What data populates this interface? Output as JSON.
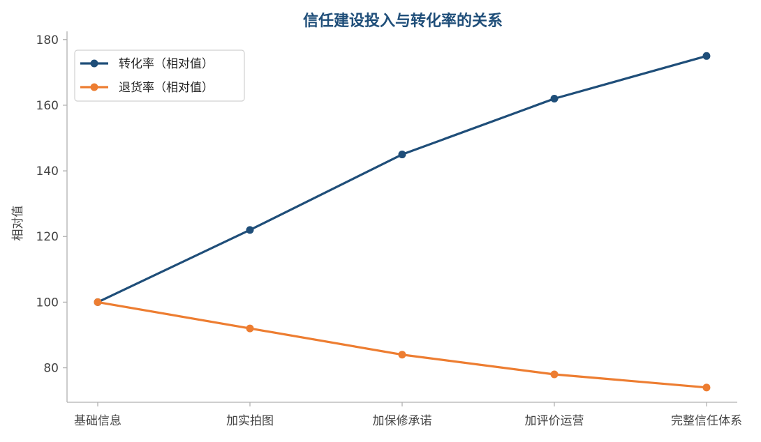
{
  "chart_data": {
    "type": "line",
    "title": "信任建设投入与转化率的关系",
    "xlabel": "",
    "ylabel": "相对值",
    "categories": [
      "基础信息",
      "加实拍图",
      "加保修承诺",
      "加评价运营",
      "完整信任体系"
    ],
    "series": [
      {
        "name": "转化率（相对值）",
        "values": [
          100,
          122,
          145,
          162,
          175
        ],
        "color": "#1f4e79"
      },
      {
        "name": "退货率（相对值）",
        "values": [
          100,
          92,
          84,
          78,
          74
        ],
        "color": "#ed7d31"
      }
    ],
    "ylim": [
      69.5,
      182.5
    ],
    "yticks": [
      80,
      100,
      120,
      140,
      160,
      180
    ],
    "grid": false,
    "legend_position": "upper-left"
  },
  "colors": {
    "title": "#1f4e79",
    "axis": "#b0b0b0",
    "text": "#444444"
  }
}
